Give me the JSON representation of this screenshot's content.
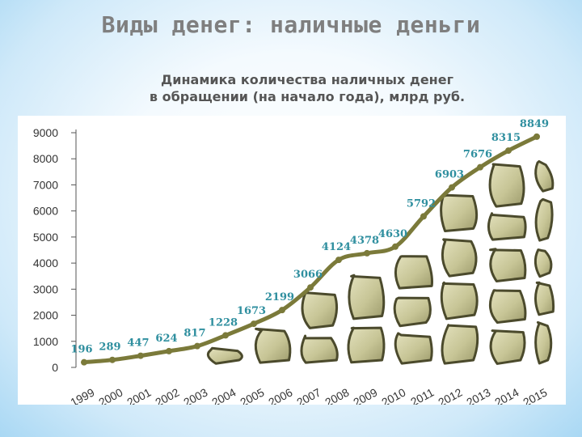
{
  "slide": {
    "title": "Виды денег: наличные деньги",
    "subtitle_line1": "Динамика количества наличных денег",
    "subtitle_line2": "в обращении (на начало года), млрд руб."
  },
  "colors": {
    "line": "#7b7a3a",
    "label": "#2f8f9f",
    "stone_fill": "#c9c79b",
    "stone_stroke": "#4b4a2c"
  },
  "chart_data": {
    "type": "line",
    "title": "Динамика количества наличных денег в обращении (на начало года), млрд руб.",
    "categories": [
      "1999",
      "2000",
      "2001",
      "2002",
      "2003",
      "2004",
      "2005",
      "2006",
      "2007",
      "2008",
      "2009",
      "2010",
      "2011",
      "2012",
      "2013",
      "2014",
      "2015"
    ],
    "values": [
      196,
      289,
      447,
      624,
      817,
      1228,
      1673,
      2199,
      3066,
      4124,
      4378,
      4630,
      5792,
      6903,
      7676,
      8315,
      8849
    ],
    "y_ticks": [
      "0",
      "1000",
      "2000",
      "3000",
      "4000",
      "5000",
      "6000",
      "7000",
      "8000",
      "9000"
    ],
    "ylim": [
      0,
      9000
    ],
    "grid": false,
    "legend": "none",
    "area_style": "stone texture below line"
  }
}
